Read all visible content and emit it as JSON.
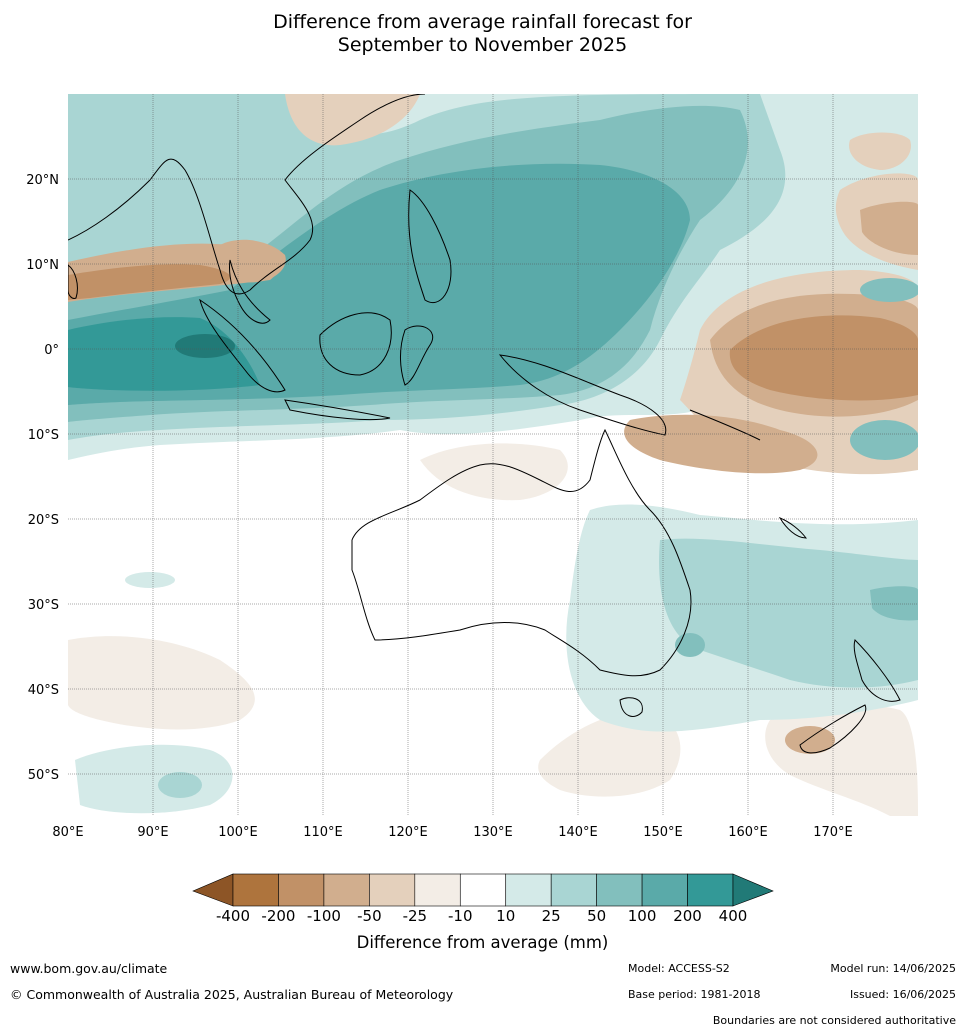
{
  "title_line1": "Difference from average rainfall forecast for",
  "title_line2": "September to November 2025",
  "axes": {
    "longitude_labels": [
      "80°E",
      "90°E",
      "100°E",
      "110°E",
      "120°E",
      "130°E",
      "140°E",
      "150°E",
      "160°E",
      "170°E"
    ],
    "latitude_labels": [
      "20°N",
      "10°N",
      "0°",
      "10°S",
      "20°S",
      "30°S",
      "40°S",
      "50°S"
    ],
    "lon_range": [
      80,
      180
    ],
    "lat_range": [
      -55,
      30
    ],
    "gridlines": true
  },
  "colorbar": {
    "title": "Difference from average (mm)",
    "ticks": [
      "-400",
      "-200",
      "-100",
      "-50",
      "-25",
      "-10",
      "10",
      "25",
      "50",
      "100",
      "200",
      "400"
    ],
    "colors": [
      "#8d5526",
      "#ae743d",
      "#c19167",
      "#d1ae8e",
      "#e4d0bc",
      "#f3ede6",
      "#ffffff",
      "#d4eae8",
      "#a9d5d3",
      "#82bfbd",
      "#5aaaa9",
      "#339997",
      "#217a77"
    ],
    "extend": "both"
  },
  "footer": {
    "website": "www.bom.gov.au/climate",
    "copyright": "© Commonwealth of Australia 2025, Australian Bureau of Meteorology",
    "model": "Model: ACCESS-S2",
    "base_period": "Base period: 1981-2018",
    "model_run": "Model run: 14/06/2025",
    "issued": "Issued: 16/06/2025",
    "disclaimer": "Boundaries are not considered authoritative"
  }
}
